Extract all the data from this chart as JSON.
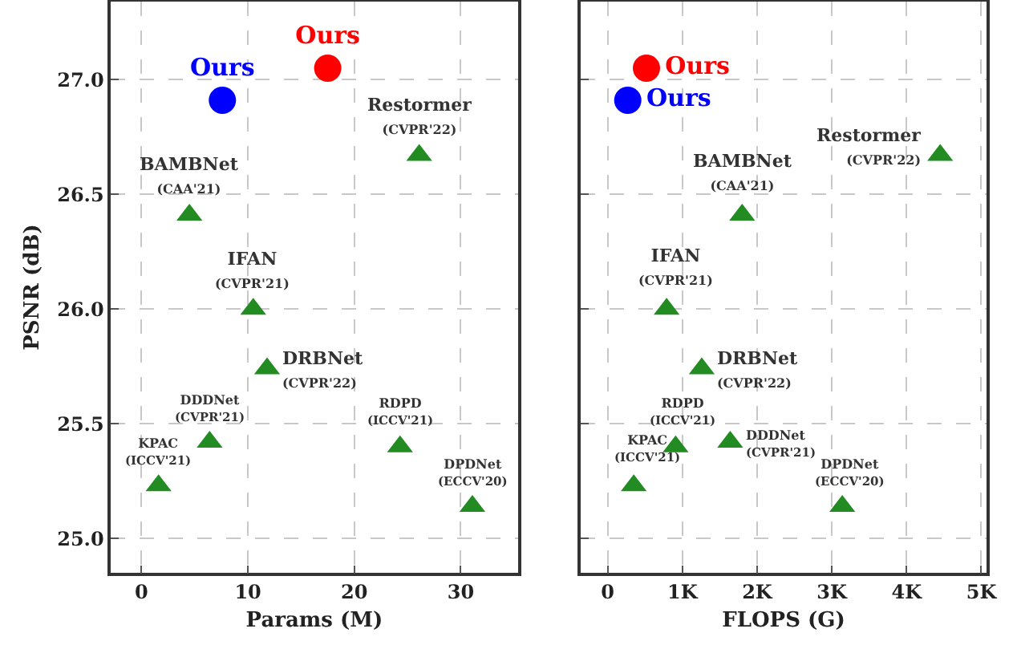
{
  "chart_data": [
    {
      "type": "scatter",
      "xlabel": "Params (M)",
      "ylabel": "PSNR (dB)",
      "xlim": [
        -2.9,
        35.4
      ],
      "xticks": [
        0,
        10,
        20,
        30
      ],
      "ylim": [
        24.85,
        27.34
      ],
      "yticks": [
        {
          "value": 25,
          "label": "25.0"
        },
        25.5,
        {
          "value": 26,
          "label": "26.0"
        },
        26.5,
        {
          "value": 27,
          "label": "27.0"
        }
      ],
      "grid": true,
      "series": [
        {
          "name": "Ours",
          "color": "#0000ff",
          "marker": "circle",
          "x": [
            7.6
          ],
          "values": [
            26.91
          ]
        },
        {
          "name": "Ours",
          "color": "#ff0000",
          "marker": "circle",
          "x": [
            17.5
          ],
          "values": [
            27.05
          ]
        },
        {
          "color": "#228b22",
          "marker": "triangle",
          "x": [
            26.1,
            4.5,
            10.5,
            11.8,
            6.4,
            1.6,
            24.3,
            31.1
          ],
          "values": [
            26.67,
            26.41,
            26.0,
            25.74,
            25.42,
            25.23,
            25.4,
            25.14
          ]
        }
      ],
      "annotations": [
        {
          "text": "Restormer\n(CVPR'22)",
          "x": 26.1,
          "y": 26.67
        },
        {
          "text": "BAMBNet\n(CAA'21)",
          "x": 4.5,
          "y": 26.41
        },
        {
          "text": "IFAN\n(CVPR'21)",
          "x": 10.5,
          "y": 26.0
        },
        {
          "text": "DRBNet\n(CVPR'22)",
          "x": 11.8,
          "y": 25.74
        },
        {
          "text": "DDDNet\n(CVPR'21)",
          "x": 6.4,
          "y": 25.42
        },
        {
          "text": "KPAC\n(ICCV'21)",
          "x": 1.6,
          "y": 25.23
        },
        {
          "text": "RDPD\n(ICCV'21)",
          "x": 24.3,
          "y": 25.4
        },
        {
          "text": "DPDNet\n(ECCV'20)",
          "x": 31.1,
          "y": 25.14
        }
      ]
    },
    {
      "type": "scatter",
      "xlabel": "FLOPS (G)",
      "xlim": [
        -360,
        5070
      ],
      "xticks": [
        0,
        {
          "value": 1000,
          "label": "1K"
        },
        {
          "value": 2000,
          "label": "2K"
        },
        {
          "value": 3000,
          "label": "3K"
        },
        {
          "value": 4000,
          "label": "4K"
        },
        {
          "value": 5000,
          "label": "5K"
        }
      ],
      "ylim": [
        24.85,
        27.34
      ],
      "yticks": [
        25,
        25.5,
        26,
        26.5,
        27
      ],
      "tick_labels": "x",
      "grid": true,
      "series": [
        {
          "name": "Ours",
          "color": "#0000ff",
          "marker": "circle",
          "x": [
            270
          ],
          "values": [
            26.91
          ]
        },
        {
          "name": "Ours",
          "color": "#ff0000",
          "marker": "circle",
          "x": [
            520
          ],
          "values": [
            27.05
          ]
        },
        {
          "color": "#228b22",
          "marker": "triangle",
          "x": [
            4450,
            1800,
            790,
            1260,
            910,
            1640,
            350,
            3140
          ],
          "values": [
            26.67,
            26.41,
            26.0,
            25.74,
            25.4,
            25.42,
            25.23,
            25.14
          ]
        }
      ],
      "annotations": [
        {
          "text": "Restormer\n(CVPR'22)",
          "x": 4450,
          "y": 26.67
        },
        {
          "text": "BAMBNet\n(CAA'21)",
          "x": 1800,
          "y": 26.41
        },
        {
          "text": "IFAN\n(CVPR'21)",
          "x": 790,
          "y": 26.0
        },
        {
          "text": "DRBNet\n(CVPR'22)",
          "x": 1260,
          "y": 25.74
        },
        {
          "text": "RDPD\n(ICCV'21)",
          "x": 910,
          "y": 25.4
        },
        {
          "text": "DDDNet\n(CVPR'21)",
          "x": 1640,
          "y": 25.42
        },
        {
          "text": "KPAC\n(ICCV'21)",
          "x": 350,
          "y": 25.23
        },
        {
          "text": "DPDNet\n(ECCV'20)",
          "x": 3140,
          "y": 25.14
        }
      ]
    }
  ]
}
